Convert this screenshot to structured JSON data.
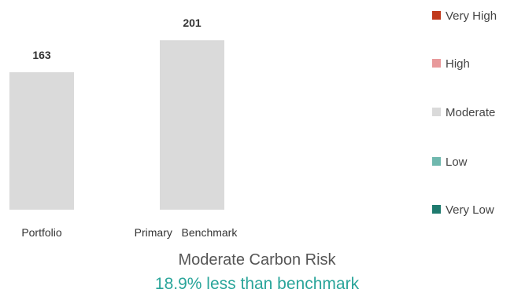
{
  "chart_data": {
    "type": "bar",
    "categories": [
      "Portfolio",
      "Primary   Benchmark"
    ],
    "values": [
      163,
      201
    ],
    "bar_color": "#dadada",
    "legend": [
      {
        "label": "Very High",
        "color": "#c0391b"
      },
      {
        "label": "High",
        "color": "#e8999b"
      },
      {
        "label": "Moderate",
        "color": "#dadada"
      },
      {
        "label": "Low",
        "color": "#6fb8ae"
      },
      {
        "label": "Very Low",
        "color": "#1e7a6e"
      }
    ]
  },
  "caption": {
    "title": "Moderate Carbon Risk",
    "subtitle": "18.9% less than benchmark",
    "subtitle_color": "#2aa59a"
  }
}
